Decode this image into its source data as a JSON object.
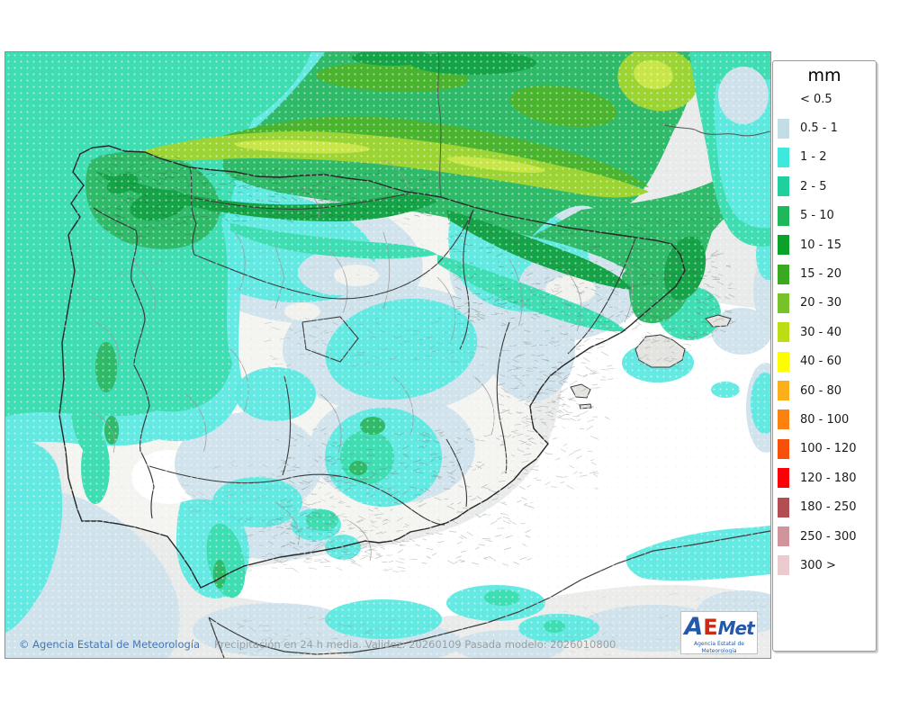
{
  "legend": {
    "title": "mm",
    "entries": [
      {
        "label": "< 0.5",
        "color": ""
      },
      {
        "label": "0.5 - 1",
        "color": "#c3dde7"
      },
      {
        "label": "1 - 2",
        "color": "#3fe8dc"
      },
      {
        "label": "2 - 5",
        "color": "#1fcf9e"
      },
      {
        "label": "5 - 10",
        "color": "#1eb75a"
      },
      {
        "label": "10 - 15",
        "color": "#0aa228"
      },
      {
        "label": "15 - 20",
        "color": "#39a922"
      },
      {
        "label": "20 - 30",
        "color": "#76c228"
      },
      {
        "label": "30 - 40",
        "color": "#bcdc13"
      },
      {
        "label": "40 - 60",
        "color": "#fdfd00"
      },
      {
        "label": "60 - 80",
        "color": "#fbaf1a"
      },
      {
        "label": "80 - 100",
        "color": "#fb820f"
      },
      {
        "label": "100 - 120",
        "color": "#f6500b"
      },
      {
        "label": "120 - 180",
        "color": "#fb0007"
      },
      {
        "label": "180 - 250",
        "color": "#b24d54"
      },
      {
        "label": "250 - 300",
        "color": "#d0959b"
      },
      {
        "label": "300 >",
        "color": "#eccbce"
      }
    ]
  },
  "footer": {
    "copyright": "© Agencia Estatal de Meteorología",
    "caption": "Precipitación en 24 h media. Validez: 20260109 Pasada modelo: 2026010800"
  },
  "logo": {
    "text_a": "A",
    "text_e": "E",
    "text_met": "Met",
    "subtitle": "Agencia Estatal de Meteorología"
  },
  "map": {
    "sea_color": "#e9eaea",
    "land_color": "#f4f4f1",
    "precip_fill_colors": {
      "lt0_5": "#ffffff",
      "p0_5_1": "#cfe2eb",
      "p1_2": "#5ce9e0",
      "p2_5": "#3eddb2",
      "p5_10": "#2eba68",
      "p10_15": "#14a447",
      "p15_20": "#4ab42e",
      "p20_30": "#9cd434",
      "p30_40": "#c9e648"
    }
  }
}
